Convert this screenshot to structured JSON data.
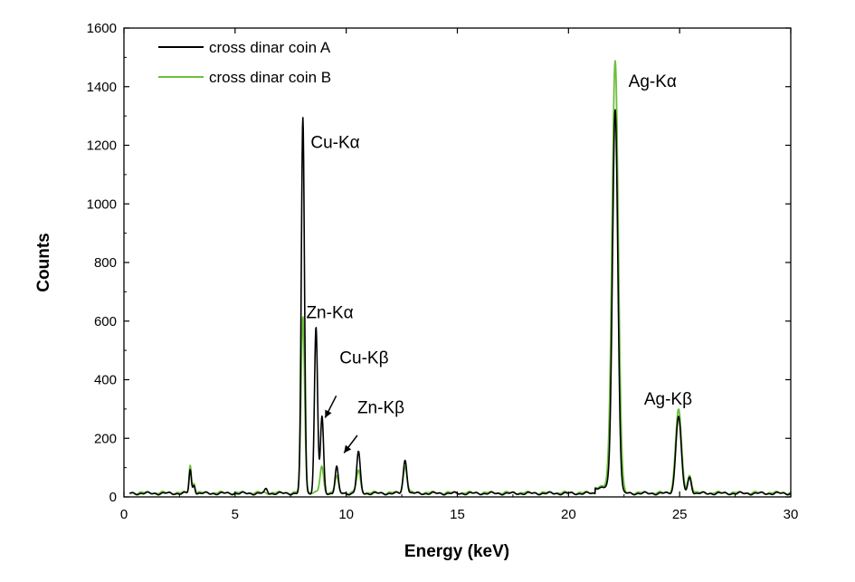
{
  "chart_data": {
    "type": "line",
    "xlabel": "Energy (keV)",
    "ylabel": "Counts",
    "xlim": [
      0,
      30
    ],
    "ylim": [
      0,
      1600
    ],
    "xticks": [
      0,
      5,
      10,
      15,
      20,
      25,
      30
    ],
    "yticks": [
      0,
      200,
      400,
      600,
      800,
      1000,
      1200,
      1400,
      1600
    ],
    "grid": false,
    "legend_position": "top-left",
    "series": [
      {
        "name": "cross dinar coin A",
        "color": "#000000",
        "baseline": 12,
        "peaks": [
          {
            "x": 2.98,
            "y": 80,
            "w": 0.05
          },
          {
            "x": 3.15,
            "y": 30,
            "w": 0.05
          },
          {
            "x": 6.4,
            "y": 15,
            "w": 0.06
          },
          {
            "x": 8.05,
            "y": 1280,
            "w": 0.07
          },
          {
            "x": 8.64,
            "y": 565,
            "w": 0.07
          },
          {
            "x": 8.91,
            "y": 260,
            "w": 0.07
          },
          {
            "x": 9.57,
            "y": 90,
            "w": 0.07
          },
          {
            "x": 10.55,
            "y": 140,
            "w": 0.08
          },
          {
            "x": 12.65,
            "y": 115,
            "w": 0.08
          },
          {
            "x": 22.1,
            "y": 1310,
            "w": 0.12
          },
          {
            "x": 24.95,
            "y": 265,
            "w": 0.12
          },
          {
            "x": 25.45,
            "y": 55,
            "w": 0.08
          }
        ]
      },
      {
        "name": "cross dinar coin B",
        "color": "#6bbf3a",
        "baseline": 14,
        "peaks": [
          {
            "x": 2.98,
            "y": 95,
            "w": 0.05
          },
          {
            "x": 3.15,
            "y": 35,
            "w": 0.05
          },
          {
            "x": 8.05,
            "y": 600,
            "w": 0.08
          },
          {
            "x": 8.9,
            "y": 90,
            "w": 0.08
          },
          {
            "x": 9.57,
            "y": 55,
            "w": 0.08
          },
          {
            "x": 10.55,
            "y": 75,
            "w": 0.09
          },
          {
            "x": 12.65,
            "y": 90,
            "w": 0.09
          },
          {
            "x": 22.1,
            "y": 1475,
            "w": 0.14
          },
          {
            "x": 24.95,
            "y": 285,
            "w": 0.13
          },
          {
            "x": 25.45,
            "y": 60,
            "w": 0.09
          }
        ]
      }
    ],
    "annotations": [
      {
        "text": "Cu-Kα",
        "x": 8.4,
        "y": 1190
      },
      {
        "text": "Zn-Kα",
        "x": 8.2,
        "y": 610
      },
      {
        "text": "Cu-Kβ",
        "x": 9.7,
        "y": 455
      },
      {
        "text": "Zn-Kβ",
        "x": 10.5,
        "y": 285
      },
      {
        "text": "Ag-Kα",
        "x": 22.7,
        "y": 1400
      },
      {
        "text": "Ag-Kβ",
        "x": 23.4,
        "y": 315
      }
    ],
    "arrows": [
      {
        "from": [
          9.55,
          345
        ],
        "to": [
          9.05,
          270
        ]
      },
      {
        "from": [
          10.5,
          210
        ],
        "to": [
          9.9,
          150
        ]
      }
    ]
  }
}
